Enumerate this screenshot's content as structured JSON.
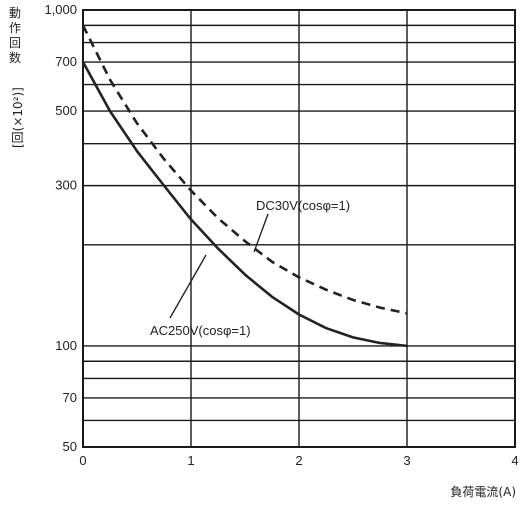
{
  "chart_data": {
    "type": "line",
    "title": "",
    "xlabel": "負荷電流(A)",
    "ylabel": "動作回数 [回(×10²)]",
    "ylabel_chars": [
      "動",
      "作",
      "回",
      "数"
    ],
    "yunit_text": "[回(×10²)]",
    "xlim": [
      0,
      4
    ],
    "ylim": [
      50,
      1000
    ],
    "yscale": "log",
    "grid": true,
    "xticks": [
      0,
      1,
      2,
      3,
      4
    ],
    "x_tick_labels": [
      "0",
      "1",
      "2",
      "3",
      "4"
    ],
    "yticks": [
      1000,
      700,
      500,
      300,
      100,
      70,
      50
    ],
    "y_tick_labels": [
      "1,000",
      "700",
      "500",
      "300",
      "100",
      "70",
      "50"
    ],
    "y_gridlines": [
      50,
      60,
      70,
      80,
      90,
      100,
      200,
      300,
      400,
      500,
      600,
      700,
      800,
      900,
      1000
    ],
    "series": [
      {
        "name": "AC250V(cosφ=1)",
        "style": "solid",
        "color": "#222222",
        "x": [
          0,
          0.25,
          0.5,
          0.75,
          1.0,
          1.25,
          1.5,
          1.75,
          2.0,
          2.25,
          2.5,
          2.75,
          3.0
        ],
        "y": [
          700,
          500,
          380,
          300,
          238,
          195,
          163,
          140,
          124,
          113,
          106,
          102,
          100
        ]
      },
      {
        "name": "DC30V(cosφ=1)",
        "style": "dashed",
        "color": "#222222",
        "x": [
          0,
          0.25,
          0.5,
          0.75,
          1.0,
          1.25,
          1.5,
          1.75,
          2.0,
          2.25,
          2.5,
          2.75,
          3.0
        ],
        "y": [
          900,
          620,
          460,
          360,
          290,
          240,
          205,
          178,
          160,
          147,
          137,
          130,
          125
        ]
      }
    ],
    "annotations": [
      {
        "text": "DC30V(cosφ=1)",
        "series": "DC30V(cosφ=1)"
      },
      {
        "text": "AC250V(cosφ=1)",
        "series": "AC250V(cosφ=1)"
      }
    ]
  }
}
